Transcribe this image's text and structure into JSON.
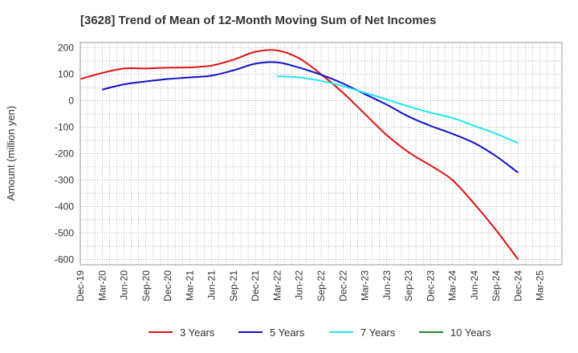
{
  "chart_data": {
    "type": "line",
    "title": "[3628]  Trend of Mean of 12-Month Moving Sum of Net Incomes",
    "xlabel": "",
    "ylabel": "Amount (million yen)",
    "ylim": [
      -620,
      220
    ],
    "yticks": [
      200,
      100,
      0,
      -100,
      -200,
      -300,
      -400,
      -500,
      -600
    ],
    "ytick_labels": [
      "200",
      "100",
      "0",
      "-100",
      "-200",
      "-300",
      "-400",
      "-500",
      "-600"
    ],
    "categories": [
      "Dec-19",
      "Mar-20",
      "Jun-20",
      "Sep-20",
      "Dec-20",
      "Mar-21",
      "Jun-21",
      "Sep-21",
      "Dec-21",
      "Mar-22",
      "Jun-22",
      "Sep-22",
      "Dec-22",
      "Mar-23",
      "Jun-23",
      "Sep-23",
      "Dec-23",
      "Mar-24",
      "Jun-24",
      "Sep-24",
      "Dec-24",
      "Mar-25"
    ],
    "grid": true,
    "legend_position": "bottom",
    "series": [
      {
        "name": "3 Years",
        "color": "#dd1111",
        "values": [
          82,
          105,
          122,
          122,
          125,
          126,
          133,
          155,
          185,
          190,
          160,
          100,
          30,
          -50,
          -130,
          -195,
          -245,
          -300,
          -390,
          -490,
          -600,
          null
        ]
      },
      {
        "name": "5 Years",
        "color": "#1111cc",
        "values": [
          null,
          42,
          62,
          73,
          82,
          88,
          95,
          115,
          140,
          145,
          125,
          98,
          65,
          25,
          -15,
          -60,
          -95,
          -125,
          -160,
          -210,
          -272,
          null
        ]
      },
      {
        "name": "7 Years",
        "color": "#22e8ee",
        "values": [
          null,
          null,
          null,
          null,
          null,
          null,
          null,
          null,
          null,
          93,
          88,
          75,
          55,
          30,
          5,
          -22,
          -45,
          -65,
          -95,
          -125,
          -160,
          null
        ]
      },
      {
        "name": "10 Years",
        "color": "#228822",
        "values": [
          null,
          null,
          null,
          null,
          null,
          null,
          null,
          null,
          null,
          null,
          null,
          null,
          null,
          null,
          null,
          null,
          null,
          null,
          null,
          null,
          null,
          null
        ]
      }
    ]
  }
}
